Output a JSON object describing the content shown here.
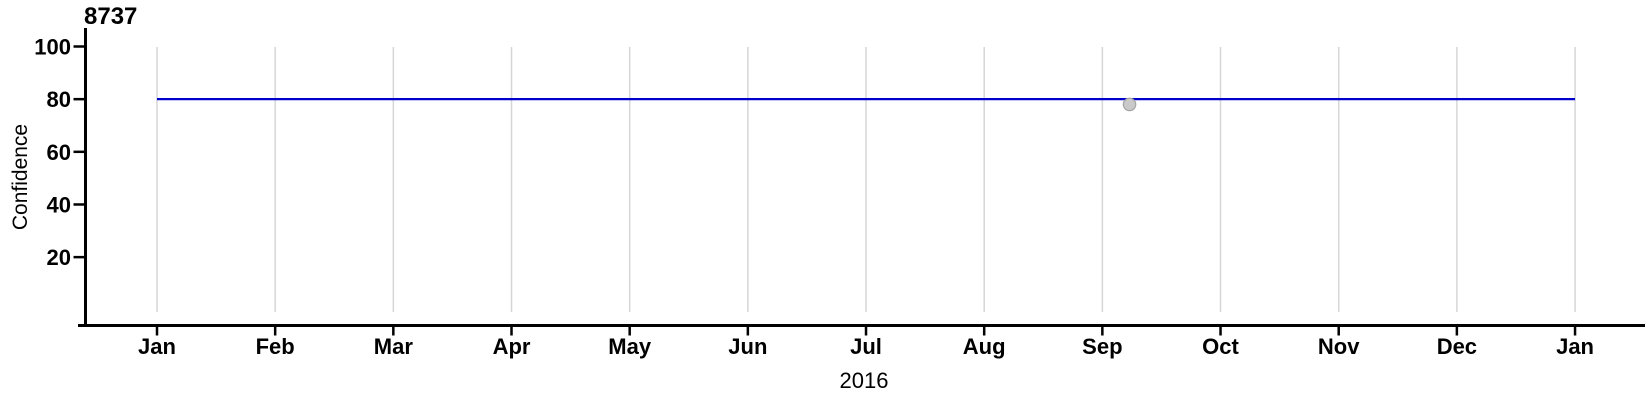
{
  "chart_data": {
    "type": "line",
    "title": "8737",
    "xlabel": "2016",
    "ylabel": "Confidence",
    "x_tick_labels": [
      "Jan",
      "Feb",
      "Mar",
      "Apr",
      "May",
      "Jun",
      "Jul",
      "Aug",
      "Sep",
      "Oct",
      "Nov",
      "Dec",
      "Jan"
    ],
    "y_ticks": [
      20,
      40,
      60,
      80,
      100
    ],
    "ylim": [
      0,
      105
    ],
    "x_unit": "months, Jan 2016 through Jan 2017",
    "grid": "light vertical gridline at each month tick, no horizontal gridlines",
    "legend": "none",
    "series": [
      {
        "name": "confidence-line",
        "type": "line",
        "color": "#0000CC",
        "points": [
          {
            "x_month": 0,
            "y": 80
          },
          {
            "x_month": 12,
            "y": 80
          }
        ]
      },
      {
        "name": "observation-point",
        "type": "scatter",
        "color": "#C9C9C9",
        "stroke": "#A3A3A3",
        "points": [
          {
            "x_month": 8.23,
            "y": 78
          }
        ]
      }
    ],
    "colors": {
      "axis": "#000000",
      "grid": "#D6D6D6",
      "line": "#0000CC",
      "point_fill": "#C9C9C9",
      "point_stroke": "#A3A3A3",
      "background": "#FFFFFF"
    }
  }
}
